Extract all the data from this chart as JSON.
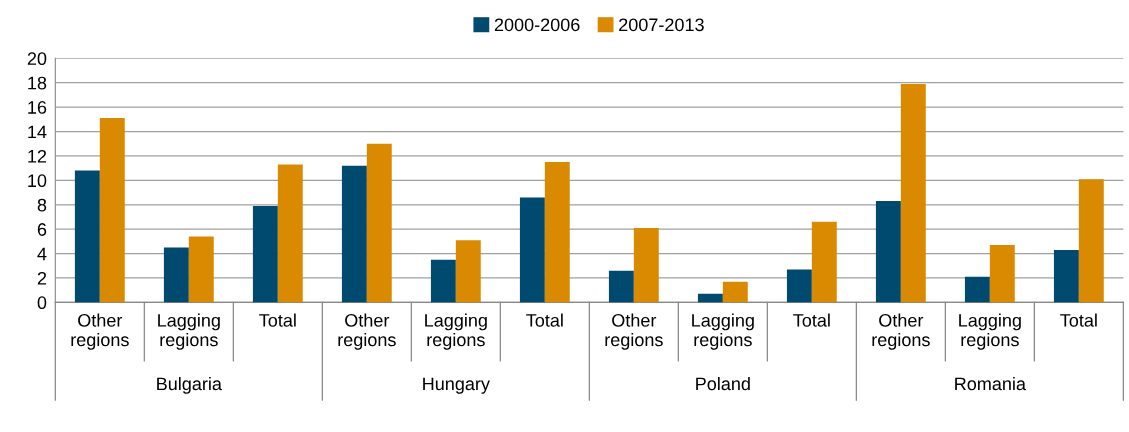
{
  "chart_data": {
    "type": "bar",
    "categories": [
      "Other regions",
      "Lagging regions",
      "Total",
      "Other regions",
      "Lagging regions",
      "Total",
      "Other regions",
      "Lagging regions",
      "Total",
      "Other regions",
      "Lagging regions",
      "Total"
    ],
    "series": [
      {
        "name": "2000-2006",
        "color": "#004a6f",
        "values": [
          10.8,
          4.5,
          7.9,
          11.2,
          3.5,
          8.6,
          2.6,
          0.7,
          2.7,
          8.3,
          2.1,
          4.3
        ]
      },
      {
        "name": "2007-2013",
        "color": "#d98a00",
        "values": [
          15.1,
          5.4,
          11.3,
          13.0,
          5.1,
          11.5,
          6.1,
          1.7,
          6.6,
          17.9,
          4.7,
          10.1
        ]
      }
    ],
    "annotations": [
      "Bulgaria",
      "Hungary",
      "Poland",
      "Romania"
    ],
    "ylim": [
      0,
      20
    ],
    "yticks": [
      0,
      2,
      4,
      6,
      8,
      10,
      12,
      14,
      16,
      18,
      20
    ],
    "grid": "y",
    "legend": "top"
  }
}
